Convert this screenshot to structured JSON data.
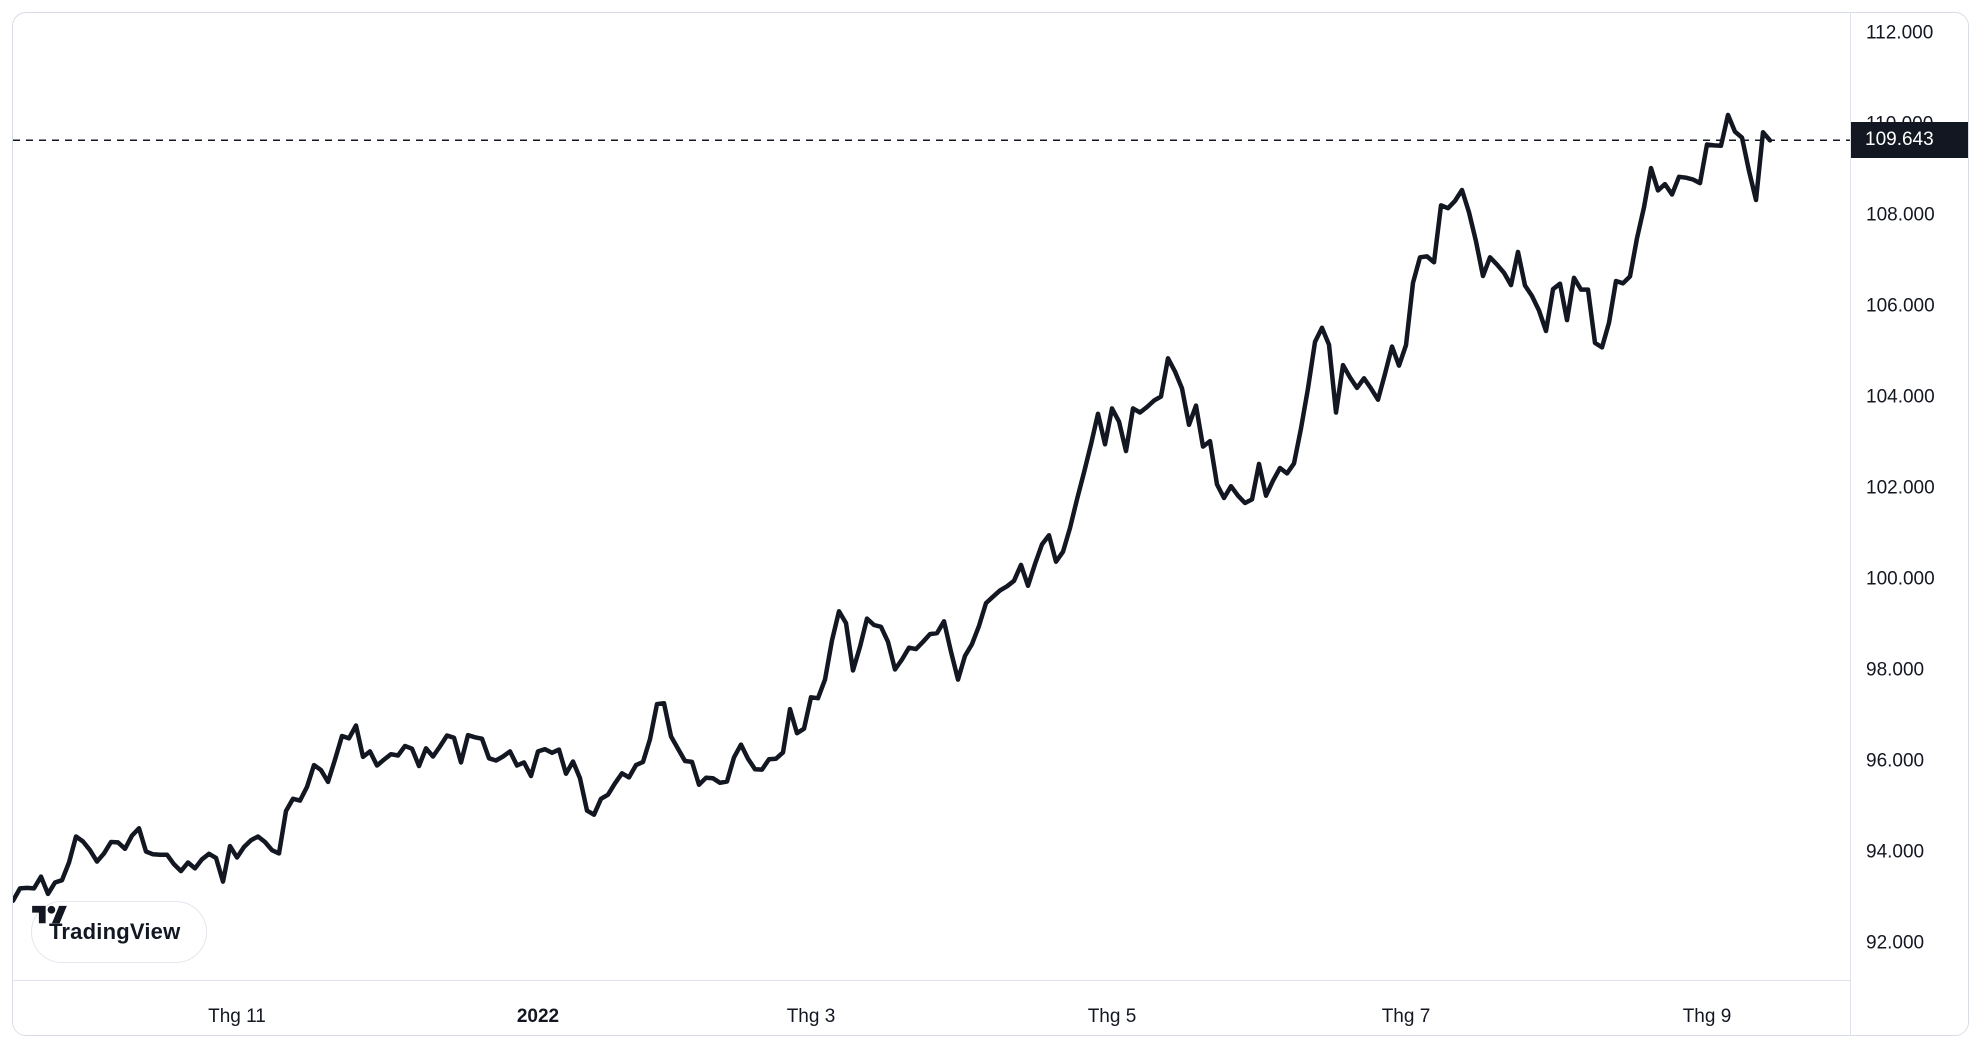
{
  "branding": {
    "label": "TradingView"
  },
  "last_price": {
    "label": "109.643",
    "value": 109.643
  },
  "colors": {
    "line": "#131722",
    "axis_text": "#131722",
    "label_background": "#131722",
    "label_text": "#ffffff",
    "outer_border": "#d8dce8",
    "separator": "#e0e3eb",
    "background": "#ffffff"
  },
  "chart_data": {
    "type": "line",
    "legend": "none",
    "grid": "off",
    "ylim": [
      91.1,
      112.5
    ],
    "y_axis": {
      "side": "right",
      "ticks": [
        {
          "label": "112.000",
          "value": 112
        },
        {
          "label": "110.000",
          "value": 110
        },
        {
          "label": "108.000",
          "value": 108
        },
        {
          "label": "106.000",
          "value": 106
        },
        {
          "label": "104.000",
          "value": 104
        },
        {
          "label": "102.000",
          "value": 102
        },
        {
          "label": "100.000",
          "value": 100
        },
        {
          "label": "98.000",
          "value": 98
        },
        {
          "label": "96.000",
          "value": 96
        },
        {
          "label": "94.000",
          "value": 94
        },
        {
          "label": "92.000",
          "value": 92
        }
      ]
    },
    "x_axis": {
      "ticks": [
        {
          "label": "Thg 11",
          "index": 32,
          "bold": false
        },
        {
          "label": "2022",
          "index": 75,
          "bold": true
        },
        {
          "label": "Thg 3",
          "index": 114,
          "bold": false
        },
        {
          "label": "Thg 5",
          "index": 157,
          "bold": false
        },
        {
          "label": "Thg 7",
          "index": 199,
          "bold": false
        },
        {
          "label": "Thg 9",
          "index": 242,
          "bold": false
        }
      ]
    },
    "last_value": 109.643,
    "dashed_level": 109.643,
    "series": [
      {
        "name": "price",
        "values": [
          92.93,
          93.2,
          93.21,
          93.2,
          93.46,
          93.08,
          93.33,
          93.38,
          93.77,
          94.34,
          94.23,
          94.04,
          93.79,
          93.97,
          94.22,
          94.21,
          94.07,
          94.36,
          94.52,
          94.01,
          93.95,
          93.94,
          93.94,
          93.73,
          93.58,
          93.77,
          93.64,
          93.84,
          93.96,
          93.87,
          93.35,
          94.13,
          93.88,
          94.11,
          94.26,
          94.34,
          94.22,
          94.04,
          93.97,
          94.9,
          95.17,
          95.13,
          95.43,
          95.91,
          95.8,
          95.54,
          96.03,
          96.55,
          96.5,
          96.78,
          96.09,
          96.21,
          95.9,
          96.03,
          96.15,
          96.12,
          96.33,
          96.27,
          95.89,
          96.28,
          96.1,
          96.32,
          96.56,
          96.51,
          95.97,
          96.57,
          96.52,
          96.49,
          96.06,
          96.01,
          96.1,
          96.21,
          95.9,
          95.97,
          95.67,
          96.21,
          96.26,
          96.18,
          96.25,
          95.72,
          95.99,
          95.62,
          94.91,
          94.82,
          95.17,
          95.26,
          95.51,
          95.73,
          95.64,
          95.91,
          95.98,
          96.48,
          97.25,
          97.27,
          96.54,
          96.27,
          96.0,
          95.98,
          95.48,
          95.63,
          95.62,
          95.52,
          95.55,
          96.08,
          96.36,
          96.05,
          95.82,
          95.81,
          96.04,
          96.05,
          96.19,
          97.14,
          96.61,
          96.71,
          97.4,
          97.38,
          97.79,
          98.65,
          99.29,
          99.03,
          97.99,
          98.51,
          99.13,
          98.99,
          98.95,
          98.62,
          98.01,
          98.23,
          98.49,
          98.46,
          98.62,
          98.79,
          98.81,
          99.07,
          98.4,
          97.79,
          98.31,
          98.57,
          98.97,
          99.47,
          99.61,
          99.75,
          99.84,
          99.96,
          100.31,
          99.85,
          100.33,
          100.76,
          100.96,
          100.38,
          100.6,
          101.12,
          101.75,
          102.34,
          102.96,
          103.63,
          102.96,
          103.75,
          103.46,
          102.81,
          103.75,
          103.66,
          103.78,
          103.92,
          104.01,
          104.85,
          104.56,
          104.19,
          103.39,
          103.81,
          102.91,
          103.03,
          102.08,
          101.78,
          102.04,
          101.83,
          101.67,
          101.75,
          102.53,
          101.83,
          102.16,
          102.44,
          102.32,
          102.54,
          103.31,
          104.19,
          105.21,
          105.52,
          105.15,
          103.66,
          104.7,
          104.43,
          104.2,
          104.41,
          104.19,
          103.94,
          104.51,
          105.11,
          104.69,
          105.14,
          106.51,
          107.07,
          107.09,
          106.96,
          108.21,
          108.15,
          108.31,
          108.55,
          108.06,
          107.42,
          106.66,
          107.07,
          106.91,
          106.73,
          106.46,
          107.19,
          106.45,
          106.22,
          105.9,
          105.45,
          106.37,
          106.49,
          105.69,
          106.62,
          106.36,
          106.36,
          105.19,
          105.09,
          105.63,
          106.55,
          106.5,
          106.65,
          107.49,
          108.17,
          109.03,
          108.54,
          108.68,
          108.45,
          108.84,
          108.82,
          108.78,
          108.7,
          109.55,
          109.53,
          109.52,
          110.2,
          109.83,
          109.7,
          108.97,
          108.33,
          109.82,
          109.64
        ]
      }
    ]
  }
}
